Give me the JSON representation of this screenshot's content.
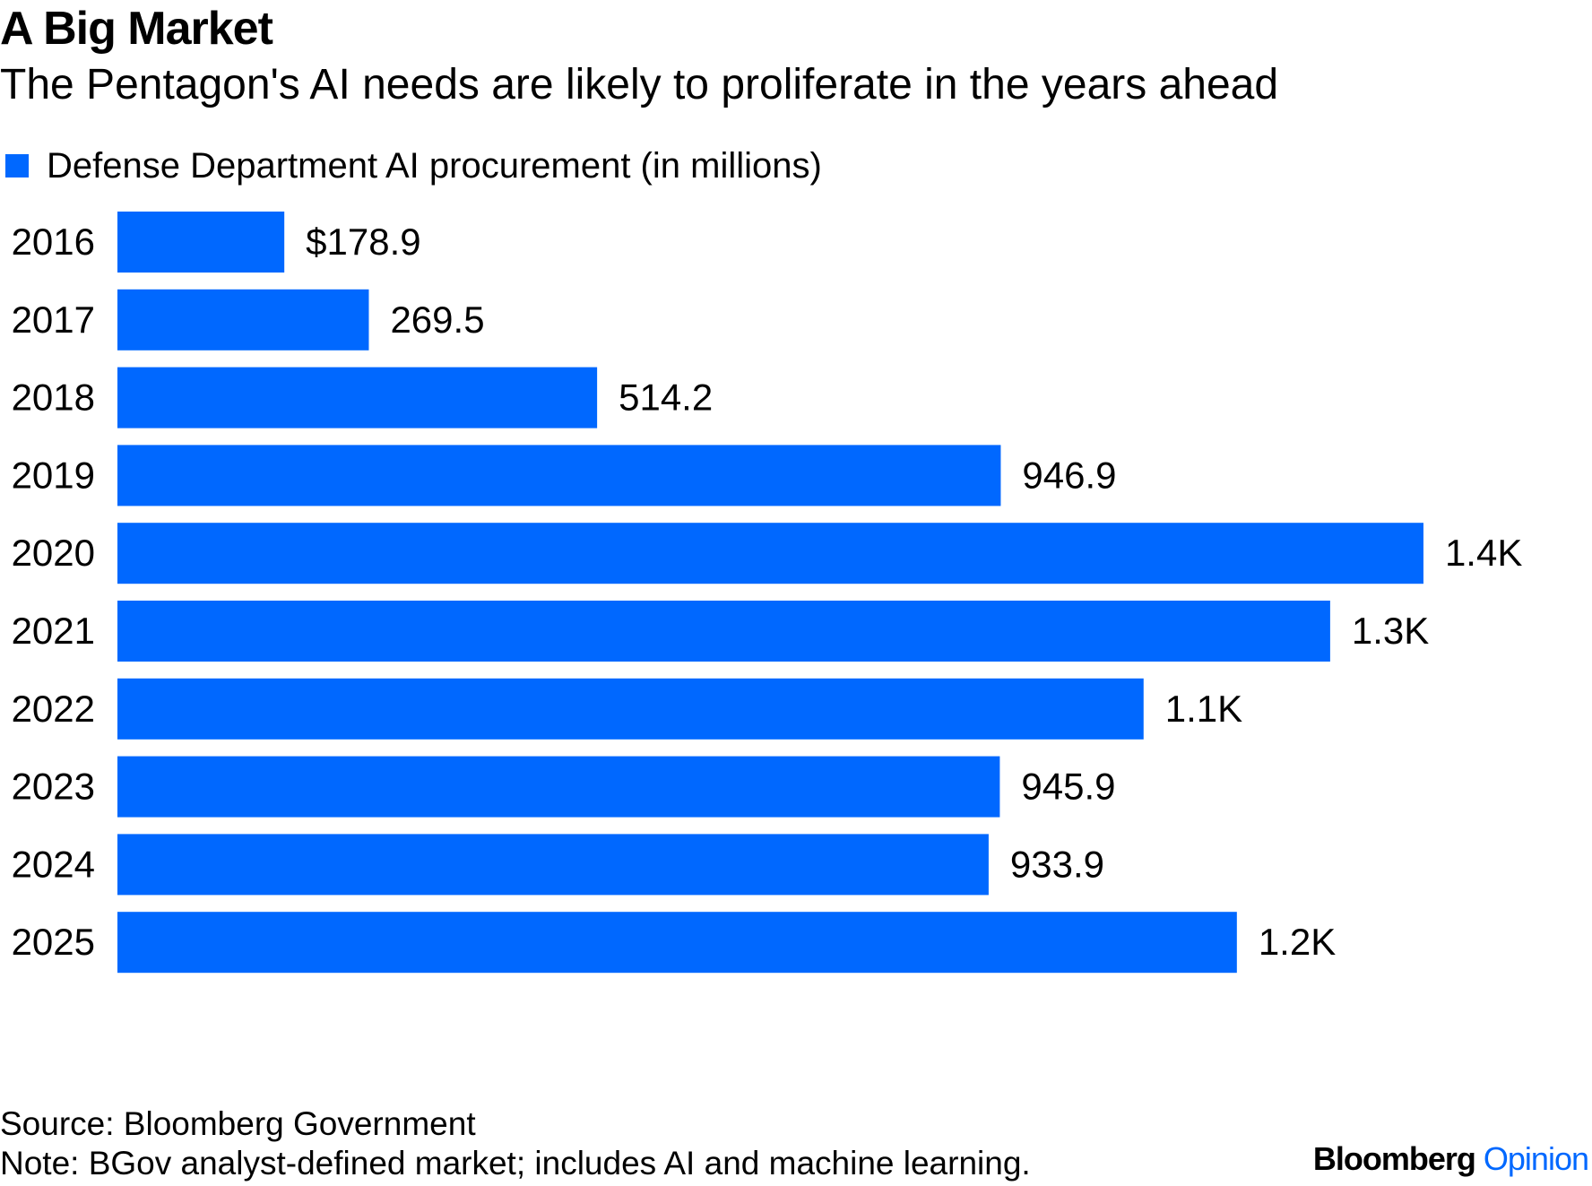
{
  "header": {
    "title": "A Big Market",
    "subtitle": "The Pentagon's AI needs are likely to proliferate in the years ahead"
  },
  "legend": {
    "label": "Defense Department AI procurement (in millions)",
    "color": "#0068ff"
  },
  "chart_data": {
    "type": "bar",
    "orientation": "horizontal",
    "title": "A Big Market",
    "subtitle": "The Pentagon's AI needs are likely to proliferate in the years ahead",
    "xlabel": "",
    "ylabel": "",
    "grid": false,
    "legend_position": "top-left",
    "xlim": [
      0,
      1450
    ],
    "categories": [
      "2016",
      "2017",
      "2018",
      "2019",
      "2020",
      "2021",
      "2022",
      "2023",
      "2024",
      "2025"
    ],
    "series": [
      {
        "name": "Defense Department AI procurement (in millions)",
        "color": "#0068ff",
        "values": [
          178.9,
          269.5,
          514.2,
          946.9,
          1400,
          1300,
          1100,
          945.9,
          933.9,
          1200
        ],
        "labels": [
          "$178.9",
          "269.5",
          "514.2",
          "946.9",
          "1.4K",
          "1.3K",
          "1.1K",
          "945.9",
          "933.9",
          "1.2K"
        ]
      }
    ]
  },
  "footer": {
    "source": "Source: Bloomberg Government",
    "note": "Note: BGov analyst-defined market; includes AI and machine learning."
  },
  "brand": {
    "name": "Bloomberg",
    "product": "Opinion"
  }
}
